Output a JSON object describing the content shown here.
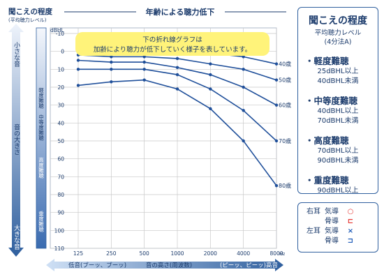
{
  "left_header": {
    "title": "聞こえの程度",
    "sub": "(平均聴力レベル)"
  },
  "band_labels": {
    "top": "小さな音",
    "mid": "音の大きさ",
    "bottom": "大きな音"
  },
  "category_strip": [
    "軽度難聴",
    "中等度難聴",
    "高度難聴",
    "重度難聴"
  ],
  "callout": {
    "line1": "下の折れ線グラフは",
    "line2": "加齢により聴力が低下していく様子を表しています。"
  },
  "footer": {
    "left": "低音(ブーッ、ブーッ)",
    "center": "音の高さ(周波数)",
    "right": "(ピーッ、ピーッ)高音"
  },
  "legend": {
    "title": "聞こえの程度",
    "sub1": "平均聴力レベル",
    "sub2": "(4分法A)",
    "categories": [
      {
        "name": "・軽度難聴",
        "line1": "25dBHL以上",
        "line2": "40dBHL未満"
      },
      {
        "name": "・中等度難聴",
        "line1": "40dBHL以上",
        "line2": "70dBHL未満"
      },
      {
        "name": "・高度難聴",
        "line1": "70dBHL以上",
        "line2": "90dBHL未満"
      },
      {
        "name": "・重度難聴",
        "line1": "90dBHL以上",
        "line2": ""
      }
    ]
  },
  "symbol_key": [
    {
      "ear": "右耳",
      "cond": "気導",
      "sym": "○",
      "color": "#e53935"
    },
    {
      "ear": "",
      "cond": "骨導",
      "sym": "⊏",
      "color": "#e53935"
    },
    {
      "ear": "左耳",
      "cond": "気導",
      "sym": "×",
      "color": "#1e5bb8"
    },
    {
      "ear": "",
      "cond": "骨導",
      "sym": "⊐",
      "color": "#1e5bb8"
    }
  ],
  "colors": {
    "series": "#1f4f9a",
    "callout_bg": "#fff37a",
    "band_dark": "#2f5f9e",
    "grid": "#c8c8c8"
  },
  "chart_data": {
    "type": "line",
    "title": "年齢による聴力低下",
    "ylabel": "dBHL",
    "x_unit": "Hz",
    "x": [
      125,
      250,
      500,
      1000,
      2000,
      4000,
      8000
    ],
    "x_tick_labels": [
      "125",
      "250",
      "500",
      "1000",
      "2000",
      "4000",
      "8000"
    ],
    "ylim": [
      -10,
      110
    ],
    "y_reversed": true,
    "y_ticks": [
      -10,
      0,
      10,
      20,
      30,
      40,
      50,
      60,
      70,
      80,
      90,
      100,
      110
    ],
    "grid": true,
    "series": [
      {
        "name": "40歳",
        "values": [
          -1,
          -1,
          -1,
          0,
          1,
          3,
          7
        ]
      },
      {
        "name": "50歳",
        "values": [
          2,
          3,
          3,
          4,
          7,
          10,
          16
        ]
      },
      {
        "name": "60歳",
        "values": [
          5,
          6,
          6,
          9,
          13,
          20,
          30
        ]
      },
      {
        "name": "70歳",
        "values": [
          10,
          10,
          10,
          13,
          21,
          33,
          50
        ]
      },
      {
        "name": "80歳",
        "values": [
          19,
          17,
          16,
          21,
          32,
          50,
          75
        ]
      }
    ]
  }
}
